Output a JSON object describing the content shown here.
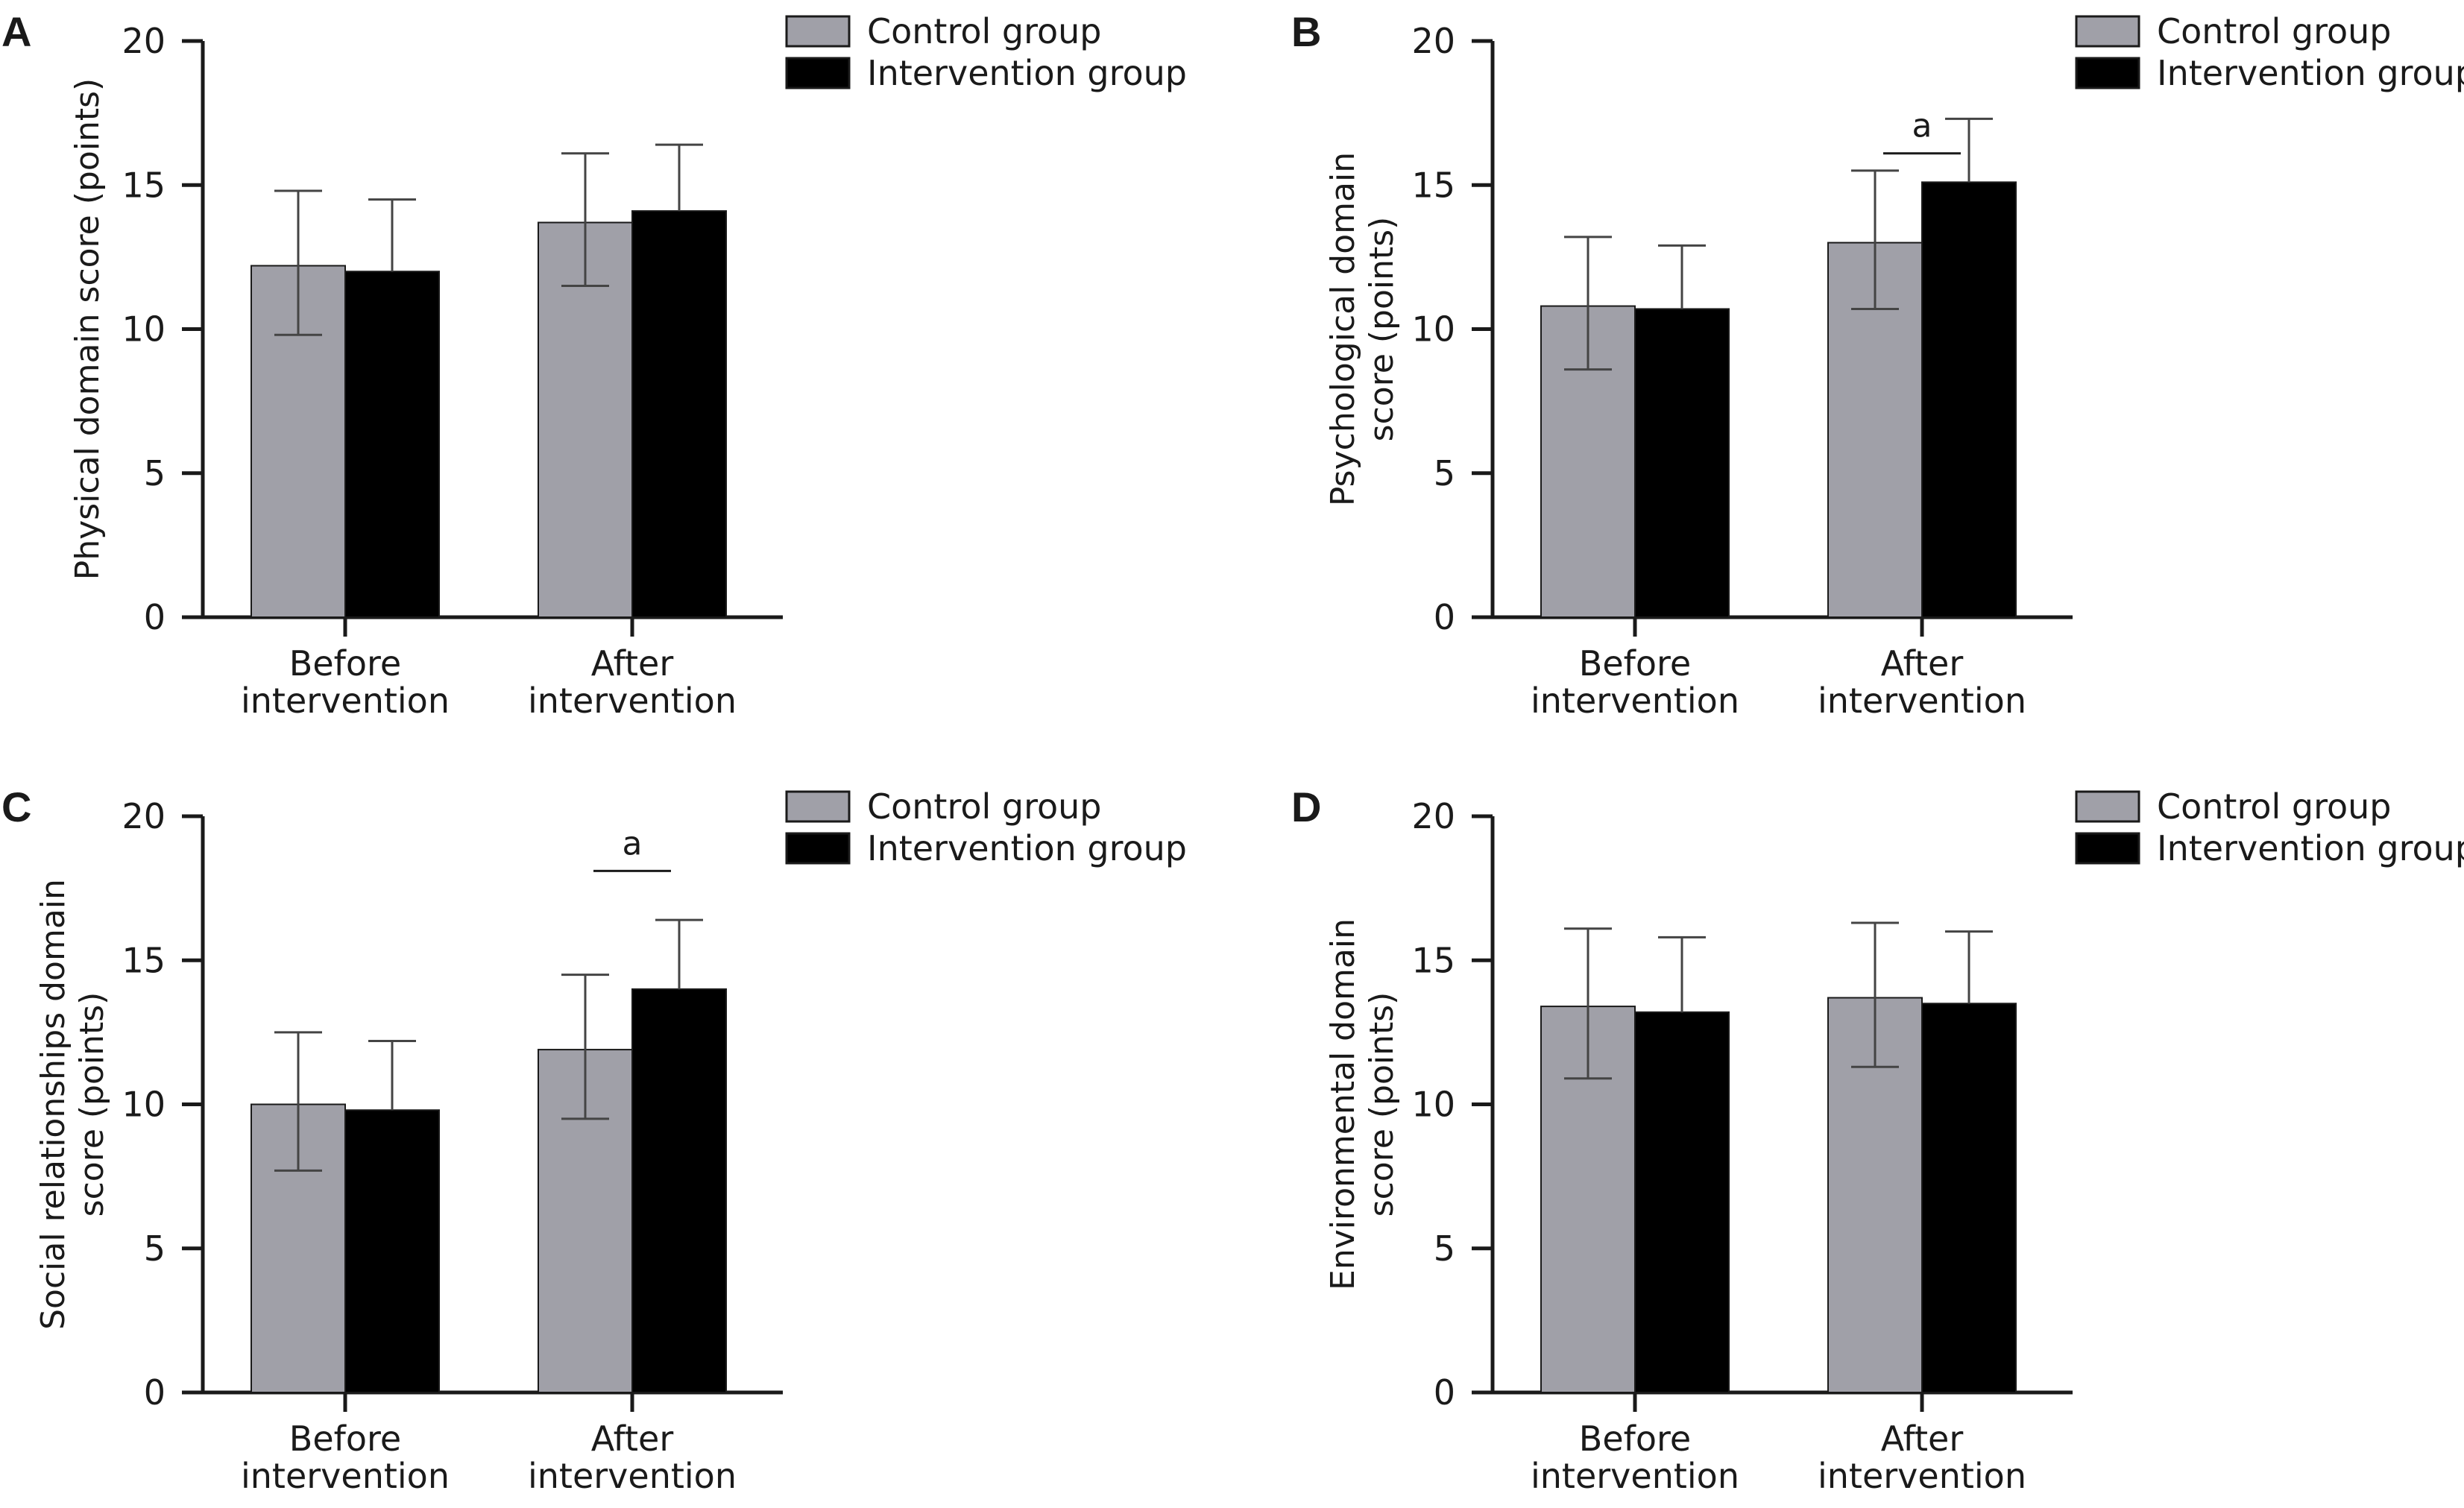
{
  "colors": {
    "control": "#a0a0a8",
    "intervention": "#000000",
    "axis": "#1a1a1a",
    "errorbar": "#444444"
  },
  "legend": {
    "control_label": "Control group",
    "intervention_label": "Intervention group"
  },
  "chart_data": [
    {
      "panel": "A",
      "type": "bar",
      "ylabel_lines": [
        "Physical domain score (points)"
      ],
      "ylim": [
        0,
        20
      ],
      "yticks": [
        0,
        5,
        10,
        15,
        20
      ],
      "categories": [
        [
          "Before",
          "intervention"
        ],
        [
          "After",
          "intervention"
        ]
      ],
      "series": [
        {
          "name": "Control group",
          "values": [
            12.2,
            13.7
          ],
          "err_upper": [
            14.8,
            16.1
          ],
          "err_lower": [
            9.8,
            11.5
          ]
        },
        {
          "name": "Intervention group",
          "values": [
            12.0,
            14.1
          ],
          "err_upper": [
            14.5,
            16.4
          ],
          "err_lower": null
        }
      ],
      "significance": []
    },
    {
      "panel": "B",
      "type": "bar",
      "ylabel_lines": [
        "Psychological domain",
        "score (points)"
      ],
      "ylim": [
        0,
        20
      ],
      "yticks": [
        0,
        5,
        10,
        15,
        20
      ],
      "categories": [
        [
          "Before",
          "intervention"
        ],
        [
          "After",
          "intervention"
        ]
      ],
      "series": [
        {
          "name": "Control group",
          "values": [
            10.8,
            13.0
          ],
          "err_upper": [
            13.2,
            15.5
          ],
          "err_lower": [
            8.6,
            10.7
          ]
        },
        {
          "name": "Intervention group",
          "values": [
            10.7,
            15.1
          ],
          "err_upper": [
            12.9,
            17.3
          ],
          "err_lower": null
        }
      ],
      "significance": [
        {
          "category": 1,
          "label": "a",
          "y": 16.1
        }
      ]
    },
    {
      "panel": "C",
      "type": "bar",
      "ylabel_lines": [
        "Social relationships domain",
        "score (points)"
      ],
      "ylim": [
        0,
        20
      ],
      "yticks": [
        0,
        5,
        10,
        15,
        20
      ],
      "categories": [
        [
          "Before",
          "intervention"
        ],
        [
          "After",
          "intervention"
        ]
      ],
      "series": [
        {
          "name": "Control group",
          "values": [
            10.0,
            11.9
          ],
          "err_upper": [
            12.5,
            14.5
          ],
          "err_lower": [
            7.7,
            9.5
          ]
        },
        {
          "name": "Intervention group",
          "values": [
            9.8,
            14.0
          ],
          "err_upper": [
            12.2,
            16.4
          ],
          "err_lower": null
        }
      ],
      "significance": [
        {
          "category": 1,
          "label": "a",
          "y": 18.1
        }
      ]
    },
    {
      "panel": "D",
      "type": "bar",
      "ylabel_lines": [
        "Environmental domain",
        "score (points)"
      ],
      "ylim": [
        0,
        20
      ],
      "yticks": [
        0,
        5,
        10,
        15,
        20
      ],
      "categories": [
        [
          "Before",
          "intervention"
        ],
        [
          "After",
          "intervention"
        ]
      ],
      "series": [
        {
          "name": "Control group",
          "values": [
            13.4,
            13.7
          ],
          "err_upper": [
            16.1,
            16.3
          ],
          "err_lower": [
            10.9,
            11.3
          ]
        },
        {
          "name": "Intervention group",
          "values": [
            13.2,
            13.5
          ],
          "err_upper": [
            15.8,
            16.0
          ],
          "err_lower": null
        }
      ],
      "significance": []
    }
  ]
}
